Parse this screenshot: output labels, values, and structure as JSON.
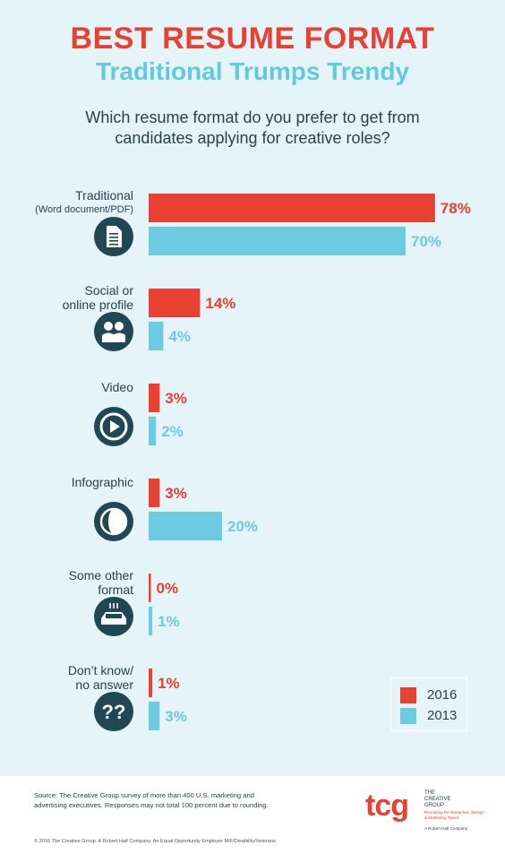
{
  "header": {
    "title": "BEST RESUME FORMAT",
    "subtitle": "Traditional Trumps Trendy",
    "question_line1": "Which resume format do you prefer to get from",
    "question_line2": "candidates applying for creative roles?"
  },
  "colors": {
    "series_2016": "#e84133",
    "series_2013": "#6ccbe0",
    "icon_bg": "#1f4754",
    "text": "#26424d"
  },
  "chart_data": {
    "type": "bar",
    "orientation": "horizontal",
    "categories": [
      {
        "lines": [
          "Traditional",
          "(Word document/PDF)"
        ],
        "icon": "document-icon"
      },
      {
        "lines": [
          "Social or",
          "online profile"
        ],
        "icon": "people-icon"
      },
      {
        "lines": [
          "Video"
        ],
        "icon": "play-icon"
      },
      {
        "lines": [
          "Infographic"
        ],
        "icon": "pie-icon"
      },
      {
        "lines": [
          "Some other",
          "format"
        ],
        "icon": "box-icon"
      },
      {
        "lines": [
          "Don’t know/",
          "no answer"
        ],
        "icon": "question-icon"
      }
    ],
    "series": [
      {
        "name": "2016",
        "values": [
          78,
          14,
          3,
          3,
          0,
          1
        ],
        "labels": [
          "78%",
          "14%",
          "3%",
          "3%",
          "0%",
          "1%"
        ]
      },
      {
        "name": "2013",
        "values": [
          70,
          4,
          2,
          20,
          1,
          3
        ],
        "labels": [
          "70%",
          "4%",
          "2%",
          "20%",
          "1%",
          "3%"
        ]
      }
    ],
    "xlim": [
      0,
      100
    ],
    "legend": "bottom-right"
  },
  "legend": {
    "items": [
      {
        "label": "2016"
      },
      {
        "label": "2013"
      }
    ]
  },
  "footer": {
    "source_line1": "Source: The Creative Group survey of more than 400 U.S. marketing and",
    "source_line2": "advertising executives. Responses may not total 100 percent due to rounding.",
    "copyright": "© 2016 The Creative Group. A Robert Half Company. An Equal Opportunity Employer M/F/Disability/Veterans.",
    "logo_mark": "tcg",
    "logo_name_line1": "THE",
    "logo_name_line2": "CREATIVE",
    "logo_name_line3": "GROUP",
    "logo_tagline": "Recruiting for Interactive, Design & Marketing Talent",
    "logo_parent": "A Robert Half Company"
  }
}
